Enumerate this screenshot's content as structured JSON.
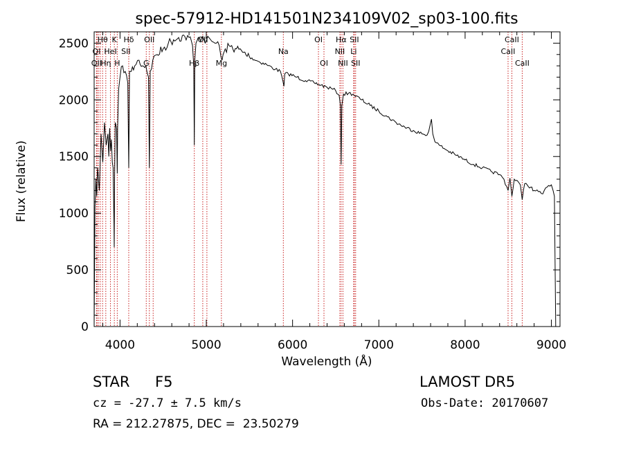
{
  "chart_data": {
    "type": "line",
    "title": "spec-57912-HD141501N234109V02_sp03-100.fits",
    "xlabel": "Wavelength (Å)",
    "ylabel": "Flux (relative)",
    "xlim": [
      3700,
      9100
    ],
    "ylim": [
      0,
      2600
    ],
    "xticks": [
      4000,
      5000,
      6000,
      7000,
      8000,
      9000
    ],
    "yticks": [
      0,
      500,
      1000,
      1500,
      2000,
      2500
    ],
    "grid": false,
    "series": [
      {
        "x": [
          3700,
          3710,
          3720,
          3730,
          3740,
          3760,
          3780,
          3800,
          3820,
          3840,
          3860,
          3870,
          3880,
          3890,
          3900,
          3910,
          3920,
          3930,
          3933,
          3937,
          3945,
          3960,
          3968,
          3972,
          3985,
          4000,
          4030,
          4060,
          4090,
          4101,
          4110,
          4130,
          4170,
          4220,
          4260,
          4300,
          4330,
          4340,
          4350,
          4380,
          4430,
          4500,
          4560,
          4620,
          4680,
          4750,
          4800,
          4840,
          4855,
          4861,
          4867,
          4880,
          4920,
          4960,
          5000,
          5050,
          5100,
          5150,
          5170,
          5183,
          5195,
          5220,
          5280,
          5350,
          5420,
          5500,
          5600,
          5700,
          5800,
          5860,
          5890,
          5900,
          5910,
          5950,
          6050,
          6150,
          6250,
          6330,
          6400,
          6450,
          6500,
          6540,
          6555,
          6563,
          6571,
          6590,
          6650,
          6700,
          6800,
          6900,
          7000,
          7100,
          7200,
          7300,
          7400,
          7500,
          7560,
          7595,
          7610,
          7625,
          7650,
          7700,
          7800,
          7900,
          8000,
          8100,
          8200,
          8300,
          8400,
          8450,
          8498,
          8520,
          8542,
          8570,
          8600,
          8640,
          8662,
          8690,
          8720,
          8760,
          8800,
          8850,
          8900,
          8950,
          9000,
          9020,
          9035,
          9050
        ],
        "y": [
          0,
          1050,
          1300,
          1150,
          1400,
          1200,
          1700,
          1450,
          1800,
          1600,
          1700,
          1500,
          1750,
          1550,
          1650,
          1450,
          1400,
          900,
          700,
          1300,
          1800,
          1750,
          1350,
          1750,
          2100,
          2200,
          2300,
          2250,
          2150,
          1400,
          2250,
          2250,
          2300,
          2350,
          2300,
          2300,
          2200,
          1400,
          2250,
          2350,
          2400,
          2450,
          2500,
          2530,
          2550,
          2560,
          2550,
          2480,
          2300,
          1600,
          2350,
          2500,
          2550,
          2560,
          2520,
          2530,
          2500,
          2480,
          2380,
          2350,
          2400,
          2450,
          2470,
          2450,
          2420,
          2380,
          2340,
          2310,
          2270,
          2250,
          2160,
          2120,
          2230,
          2230,
          2200,
          2170,
          2150,
          2130,
          2110,
          2100,
          2080,
          2040,
          1950,
          1430,
          1950,
          2050,
          2060,
          2050,
          2000,
          1950,
          1900,
          1850,
          1800,
          1760,
          1730,
          1700,
          1690,
          1780,
          1830,
          1700,
          1630,
          1600,
          1550,
          1510,
          1470,
          1430,
          1400,
          1370,
          1340,
          1300,
          1200,
          1310,
          1150,
          1300,
          1290,
          1250,
          1120,
          1260,
          1250,
          1230,
          1200,
          1190,
          1170,
          1230,
          1250,
          1200,
          1150,
          0
        ]
      }
    ],
    "line_labels": [
      {
        "label": "Hθ",
        "x": 3798,
        "row": 1
      },
      {
        "label": "K",
        "x": 3934,
        "row": 1
      },
      {
        "label": "Hδ",
        "x": 4101,
        "row": 1
      },
      {
        "label": "OII",
        "x": 4340,
        "row": 1
      },
      {
        "label": "OII",
        "x": 4960,
        "row": 1
      },
      {
        "label": "OI",
        "x": 6300,
        "row": 1
      },
      {
        "label": "Hα",
        "x": 6563,
        "row": 1
      },
      {
        "label": "SII",
        "x": 6716,
        "row": 1
      },
      {
        "label": "CaII",
        "x": 8542,
        "row": 1
      },
      {
        "label": "OI",
        "x": 3728,
        "row": 2
      },
      {
        "label": "HeI",
        "x": 3889,
        "row": 2
      },
      {
        "label": "SII",
        "x": 4068,
        "row": 2
      },
      {
        "label": "Na",
        "x": 5893,
        "row": 2
      },
      {
        "label": "NII",
        "x": 6548,
        "row": 2
      },
      {
        "label": "Li",
        "x": 6708,
        "row": 2
      },
      {
        "label": "CaII",
        "x": 8498,
        "row": 2
      },
      {
        "label": "OII",
        "x": 3727,
        "row": 3
      },
      {
        "label": "Hη",
        "x": 3835,
        "row": 3
      },
      {
        "label": "H",
        "x": 3968,
        "row": 3
      },
      {
        "label": "G",
        "x": 4304,
        "row": 3
      },
      {
        "label": "Hβ",
        "x": 4861,
        "row": 3
      },
      {
        "label": "Mg",
        "x": 5175,
        "row": 3
      },
      {
        "label": "OI",
        "x": 6364,
        "row": 3
      },
      {
        "label": "NII",
        "x": 6584,
        "row": 3
      },
      {
        "label": "SII",
        "x": 6731,
        "row": 3
      },
      {
        "label": "CaII",
        "x": 8662,
        "row": 3
      }
    ],
    "marker_lines_x": [
      3727,
      3734,
      3750,
      3771,
      3798,
      3835,
      3889,
      3934,
      3968,
      4101,
      4304,
      4340,
      4384,
      4861,
      4959,
      5007,
      5175,
      5893,
      6300,
      6364,
      6548,
      6563,
      6584,
      6708,
      6716,
      6731,
      8498,
      8542,
      8662
    ]
  },
  "info": {
    "class": "STAR",
    "subclass": "F5",
    "cz": "cz = -27.7 ± 7.5 km/s",
    "survey": "LAMOST DR5",
    "obs_date": "Obs-Date: 20170607",
    "radec": "RA = 212.27875, DEC =  23.50279"
  }
}
